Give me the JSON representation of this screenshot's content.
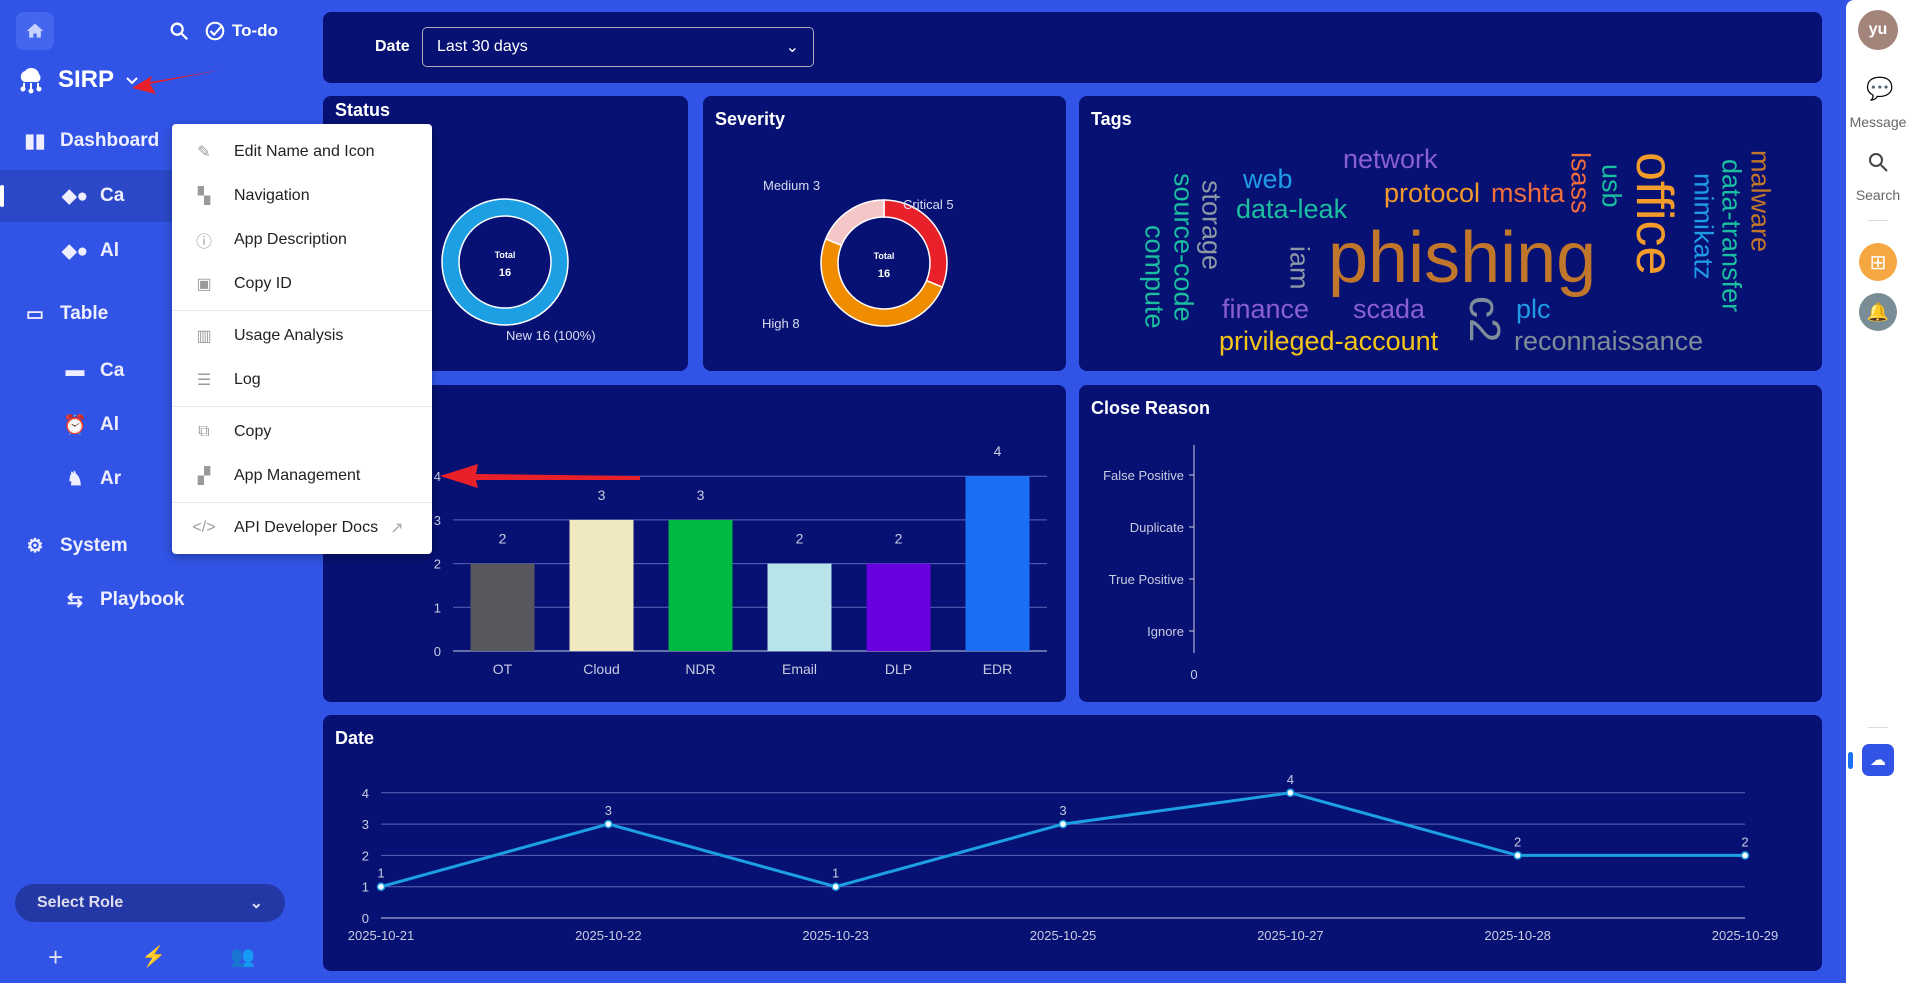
{
  "sidebar": {
    "search_icon": "search-icon",
    "todo_label": "To-do",
    "app_name": "SIRP",
    "items": [
      {
        "label": "Dashboard",
        "icon": "bar-chart-icon"
      },
      {
        "label": "Ca",
        "icon": "shapes-icon"
      },
      {
        "label": "Al",
        "icon": "shapes-icon"
      },
      {
        "label": "Table",
        "icon": "laptop-icon"
      },
      {
        "label": "Ca",
        "icon": "briefcase-icon"
      },
      {
        "label": "Al",
        "icon": "alarm-icon"
      },
      {
        "label": "Ar",
        "icon": "chess-knight-icon"
      },
      {
        "label": "System",
        "icon": "gear-icon"
      },
      {
        "label": "Playbook",
        "icon": "playbook-icon"
      }
    ],
    "select_role": "Select Role"
  },
  "menu": {
    "items": [
      "Edit Name and Icon",
      "Navigation",
      "App Description",
      "Copy ID",
      "Usage Analysis",
      "Log",
      "Copy",
      "App Management",
      "API Developer Docs"
    ]
  },
  "filter": {
    "label": "Date",
    "value": "Last 30 days"
  },
  "right": {
    "avatar": "yu",
    "message": "Message",
    "search": "Search"
  },
  "colors": {
    "sidebar": "#3254e6",
    "panel": "#071173",
    "annotation_arrow": "#e8202a"
  },
  "chart_data": [
    {
      "type": "pie",
      "title": "Status",
      "center_label": "Total",
      "total": 16,
      "slices": [
        {
          "name": "New",
          "value": 16,
          "label": "New  16 (100%)",
          "color": "#1ca0e3"
        }
      ]
    },
    {
      "type": "pie",
      "title": "Severity",
      "center_label": "Total",
      "total": 16,
      "slices": [
        {
          "name": "Critical",
          "value": 5,
          "label": "Critical  5",
          "color": "#e8202a"
        },
        {
          "name": "High",
          "value": 8,
          "label": "High  8",
          "color": "#f08c00"
        },
        {
          "name": "Medium",
          "value": 3,
          "label": "Medium  3",
          "color": "#f5c6c8"
        }
      ]
    },
    {
      "type": "wordcloud",
      "title": "Tags",
      "words": [
        {
          "text": "phishing",
          "color": "#c0762b"
        },
        {
          "text": "office",
          "color": "#f39c2b"
        },
        {
          "text": "network",
          "color": "#8a5fd0"
        },
        {
          "text": "web",
          "color": "#1f9be8"
        },
        {
          "text": "protocol",
          "color": "#f29a2b"
        },
        {
          "text": "mshta",
          "color": "#f06d3c"
        },
        {
          "text": "data-leak",
          "color": "#1bbfa0"
        },
        {
          "text": "finance",
          "color": "#8a5fd0"
        },
        {
          "text": "scada",
          "color": "#8a5fd0"
        },
        {
          "text": "plc",
          "color": "#1f9be8"
        },
        {
          "text": "privileged-account",
          "color": "#f5c518"
        },
        {
          "text": "reconnaissance",
          "color": "#7f8c99"
        },
        {
          "text": "compute",
          "color": "#1bbfa0"
        },
        {
          "text": "source-code",
          "color": "#1bbfa0"
        },
        {
          "text": "storage",
          "color": "#8c98a5"
        },
        {
          "text": "iam",
          "color": "#8c98a5"
        },
        {
          "text": "c2",
          "color": "#7f8c99"
        },
        {
          "text": "lsass",
          "color": "#f06d3c"
        },
        {
          "text": "usb",
          "color": "#1bbfa0"
        },
        {
          "text": "mimikatz",
          "color": "#1f9be8"
        },
        {
          "text": "data-transfer",
          "color": "#1bbfa0"
        },
        {
          "text": "malware",
          "color": "#c0762b"
        }
      ]
    },
    {
      "type": "bar",
      "title": "",
      "categories": [
        "OT",
        "Cloud",
        "NDR",
        "Email",
        "DLP",
        "EDR"
      ],
      "values": [
        2,
        3,
        3,
        2,
        2,
        4
      ],
      "colors": [
        "#58585e",
        "#f0e8c0",
        "#00b844",
        "#b8e4ec",
        "#6a00e0",
        "#1a6ff5"
      ],
      "yticks": [
        0,
        1,
        2,
        3,
        4
      ],
      "ylim": [
        0,
        4
      ],
      "grid": true
    },
    {
      "type": "bar",
      "title": "Close Reason",
      "orientation": "horizontal",
      "categories": [
        "False Positive",
        "Duplicate",
        "True Positive",
        "Ignore"
      ],
      "values": [
        0,
        0,
        0,
        0
      ],
      "xticks": [
        0
      ]
    },
    {
      "type": "line",
      "title": "Date",
      "x": [
        "2025-10-21",
        "2025-10-22",
        "2025-10-23",
        "2025-10-25",
        "2025-10-27",
        "2025-10-28",
        "2025-10-29"
      ],
      "y": [
        1,
        3,
        1,
        3,
        4,
        2,
        2
      ],
      "yticks": [
        0,
        1,
        2,
        3,
        4
      ],
      "ylim": [
        0,
        4
      ],
      "color": "#1ca0e3",
      "grid": true
    }
  ]
}
